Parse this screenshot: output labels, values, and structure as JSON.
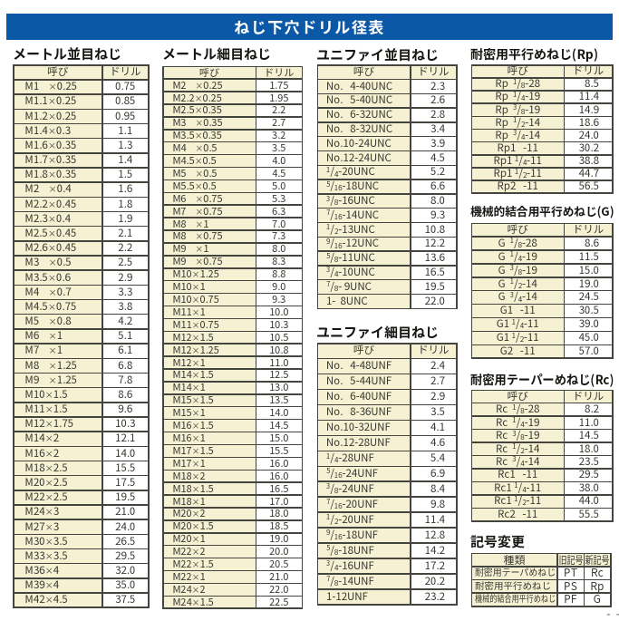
{
  "page": {
    "colors": {
      "accent_blue": "#0b59a6",
      "cell_cream": "#f7f1d3",
      "border": "#454540",
      "text": "#3b3b36",
      "title_text": "#ffffff"
    }
  },
  "header": {
    "title": "ねじ下穴ドリル径表"
  },
  "corner_marks": "- -",
  "sections": {
    "metric_coarse": {
      "title": "メートル並目ねじ",
      "headers": [
        "呼び",
        "ドリル"
      ],
      "rows": [
        [
          "M1    ×0.25",
          "0.75"
        ],
        [
          "M1.1×0.25",
          "0.85"
        ],
        [
          "M1.2×0.25",
          "0.95"
        ],
        [
          "M1.4×0.3",
          "1.1"
        ],
        [
          "M1.6×0.35",
          "1.3"
        ],
        [
          "M1.7×0.35",
          "1.4"
        ],
        [
          "M1.8×0.35",
          "1.5"
        ],
        [
          "M2    ×0.4",
          "1.6"
        ],
        [
          "M2.2×0.45",
          "1.8"
        ],
        [
          "M2.3×0.4",
          "1.9"
        ],
        [
          "M2.5×0.45",
          "2.1"
        ],
        [
          "M2.6×0.45",
          "2.2"
        ],
        [
          "M3    ×0.5",
          "2.5"
        ],
        [
          "M3.5×0.6",
          "2.9"
        ],
        [
          "M4    ×0.7",
          "3.3"
        ],
        [
          "M4.5×0.75",
          "3.8"
        ],
        [
          "M5    ×0.8",
          "4.2"
        ],
        [
          "M6    ×1",
          "5.1"
        ],
        [
          "M7    ×1",
          "6.1"
        ],
        [
          "M8    ×1.25",
          "6.8"
        ],
        [
          "M9    ×1.25",
          "7.8"
        ],
        [
          "M10×1.5",
          "8.6"
        ],
        [
          "M11×1.5",
          "9.6"
        ],
        [
          "M12×1.75",
          "10.3"
        ],
        [
          "M14×2",
          "12.1"
        ],
        [
          "M16×2",
          "14.0"
        ],
        [
          "M18×2.5",
          "15.5"
        ],
        [
          "M20×2.5",
          "17.5"
        ],
        [
          "M22×2.5",
          "19.5"
        ],
        [
          "M24×3",
          "21.0"
        ],
        [
          "M27×3",
          "24.0"
        ],
        [
          "M30×3.5",
          "26.5"
        ],
        [
          "M33×3.5",
          "29.5"
        ],
        [
          "M36×4",
          "32.0"
        ],
        [
          "M39×4",
          "35.0"
        ],
        [
          "M42×4.5",
          "37.5"
        ]
      ]
    },
    "metric_fine": {
      "title": "メートル細目ねじ",
      "headers": [
        "呼び",
        "ドリル"
      ],
      "rows": [
        [
          "M2    ×0.25",
          "1.75"
        ],
        [
          "M2.2×0.25",
          "1.95"
        ],
        [
          "M2.5×0.35",
          "2.2"
        ],
        [
          "M3    ×0.35",
          "2.7"
        ],
        [
          "M3.5×0.35",
          "3.2"
        ],
        [
          "M4    ×0.5",
          "3.5"
        ],
        [
          "M4.5×0.5",
          "4.0"
        ],
        [
          "M5    ×0.5",
          "4.5"
        ],
        [
          "M5.5×0.5",
          "5.0"
        ],
        [
          "M6    ×0.75",
          "5.3"
        ],
        [
          "M7    ×0.75",
          "6.3"
        ],
        [
          "M8    ×1",
          "7.0"
        ],
        [
          "M8    ×0.75",
          "7.3"
        ],
        [
          "M9    ×1",
          "8.0"
        ],
        [
          "M9    ×0.75",
          "8.3"
        ],
        [
          "M10×1.25",
          "8.8"
        ],
        [
          "M10×1",
          "9.0"
        ],
        [
          "M10×0.75",
          "9.3"
        ],
        [
          "M11×1",
          "10.0"
        ],
        [
          "M11×0.75",
          "10.3"
        ],
        [
          "M12×1.5",
          "10.5"
        ],
        [
          "M12×1.25",
          "10.8"
        ],
        [
          "M12×1",
          "11.0"
        ],
        [
          "M14×1.5",
          "12.5"
        ],
        [
          "M14×1",
          "13.0"
        ],
        [
          "M15×1.5",
          "13.5"
        ],
        [
          "M15×1",
          "14.0"
        ],
        [
          "M16×1.5",
          "14.5"
        ],
        [
          "M16×1",
          "15.0"
        ],
        [
          "M17×1.5",
          "15.5"
        ],
        [
          "M17×1",
          "16.0"
        ],
        [
          "M18×2",
          "16.0"
        ],
        [
          "M18×1.5",
          "16.5"
        ],
        [
          "M18×1",
          "17.0"
        ],
        [
          "M20×2",
          "18.0"
        ],
        [
          "M20×1.5",
          "18.5"
        ],
        [
          "M20×1",
          "19.0"
        ],
        [
          "M22×2",
          "20.0"
        ],
        [
          "M22×1.5",
          "20.5"
        ],
        [
          "M22×1",
          "21.0"
        ],
        [
          "M24×2",
          "22.0"
        ],
        [
          "M24×1.5",
          "22.5"
        ]
      ]
    },
    "unified_coarse": {
      "title": "ユニファイ並目ねじ",
      "headers": [
        "呼び",
        "ドリル"
      ],
      "rows": [
        [
          "No.   4-40UNC",
          "2.3"
        ],
        [
          "No.   5-40UNC",
          "2.6"
        ],
        [
          "No.   6-32UNC",
          "2.8"
        ],
        [
          "No.   8-32UNC",
          "3.4"
        ],
        [
          "No.10-24UNC",
          "3.9"
        ],
        [
          "No.12-24UNC",
          "4.5"
        ],
        [
          "1/4-20UNC",
          "5.2"
        ],
        [
          "5/16-18UNC",
          "6.6"
        ],
        [
          "3/8-16UNC",
          "8.0"
        ],
        [
          "7/16-14UNC",
          "9.3"
        ],
        [
          "1/2-13UNC",
          "10.8"
        ],
        [
          "9/16-12UNC",
          "12.2"
        ],
        [
          "5/8-11UNC",
          "13.6"
        ],
        [
          "3/4-10UNC",
          "16.5"
        ],
        [
          "7/8- 9UNC",
          "19.5"
        ],
        [
          "1-  8UNC",
          "22.0"
        ]
      ]
    },
    "unified_fine": {
      "title": "ユニファイ細目ねじ",
      "headers": [
        "呼び",
        "ドリル"
      ],
      "rows": [
        [
          "No.   4-48UNF",
          "2.4"
        ],
        [
          "No.   5-44UNF",
          "2.7"
        ],
        [
          "No.   6-40UNF",
          "2.9"
        ],
        [
          "No.   8-36UNF",
          "3.5"
        ],
        [
          "No.10-32UNF",
          "4.1"
        ],
        [
          "No.12-28UNF",
          "4.6"
        ],
        [
          "1/4-28UNF",
          "5.4"
        ],
        [
          "5/16-24UNF",
          "6.9"
        ],
        [
          "3/8-24UNF",
          "8.4"
        ],
        [
          "7/16-20UNF",
          "9.8"
        ],
        [
          "1/2-20UNF",
          "11.4"
        ],
        [
          "9/16-18UNF",
          "12.8"
        ],
        [
          "5/8-18UNF",
          "14.2"
        ],
        [
          "3/4-16UNF",
          "17.2"
        ],
        [
          "7/8-14UNF",
          "20.2"
        ],
        [
          "1-12UNF",
          "23.2"
        ]
      ]
    },
    "rp": {
      "title": "耐密用平行めねじ(Rp)",
      "headers": [
        "呼び",
        "ドリル"
      ],
      "rows": [
        [
          "Rp  1/8-28",
          "8.5"
        ],
        [
          "Rp  1/4-19",
          "11.4"
        ],
        [
          "Rp  3/8-19",
          "14.9"
        ],
        [
          "Rp  1/2-14",
          "18.6"
        ],
        [
          "Rp  3/4-14",
          "24.0"
        ],
        [
          "Rp1   -11",
          "30.2"
        ],
        [
          "Rp1 1/4-11",
          "38.8"
        ],
        [
          "Rp1 1/2-11",
          "44.7"
        ],
        [
          "Rp2   -11",
          "56.5"
        ]
      ]
    },
    "g": {
      "title": "機械的結合用平行めねじ(G)",
      "headers": [
        "呼び",
        "ドリル"
      ],
      "rows": [
        [
          "G  1/8-28",
          "8.6"
        ],
        [
          "G  1/4-19",
          "11.5"
        ],
        [
          "G  3/8-19",
          "15.0"
        ],
        [
          "G  1/2-14",
          "19.0"
        ],
        [
          "G  3/4-14",
          "24.5"
        ],
        [
          "G1   -11",
          "30.5"
        ],
        [
          "G1 1/4-11",
          "39.0"
        ],
        [
          "G1 1/2-11",
          "45.0"
        ],
        [
          "G2   -11",
          "57.0"
        ]
      ]
    },
    "rc": {
      "title": "耐密用テーパーめねじ(Rc)",
      "headers": [
        "呼び",
        "ドリル"
      ],
      "rows": [
        [
          "Rc  1/8-28",
          "8.2"
        ],
        [
          "Rc  1/4-19",
          "11.0"
        ],
        [
          "Rc  3/8-19",
          "14.5"
        ],
        [
          "Rc  1/2-14",
          "18.0"
        ],
        [
          "Rc  3/4-14",
          "23.5"
        ],
        [
          "Rc1   -11",
          "29.5"
        ],
        [
          "Rc1 1/4-11",
          "38.0"
        ],
        [
          "Rc1 1/2-11",
          "44.0"
        ],
        [
          "Rc2   -11",
          "55.5"
        ]
      ]
    },
    "symbol_change": {
      "title": "記号変更",
      "headers": [
        "種類",
        "旧記号",
        "新記号"
      ],
      "rows": [
        [
          "耐密用テーパめねじ",
          "PT",
          "Rc"
        ],
        [
          "耐密用平行めねじ",
          "PS",
          "Rp"
        ],
        [
          "機械的結合用平行めねじ",
          "PF",
          "G"
        ]
      ]
    }
  }
}
